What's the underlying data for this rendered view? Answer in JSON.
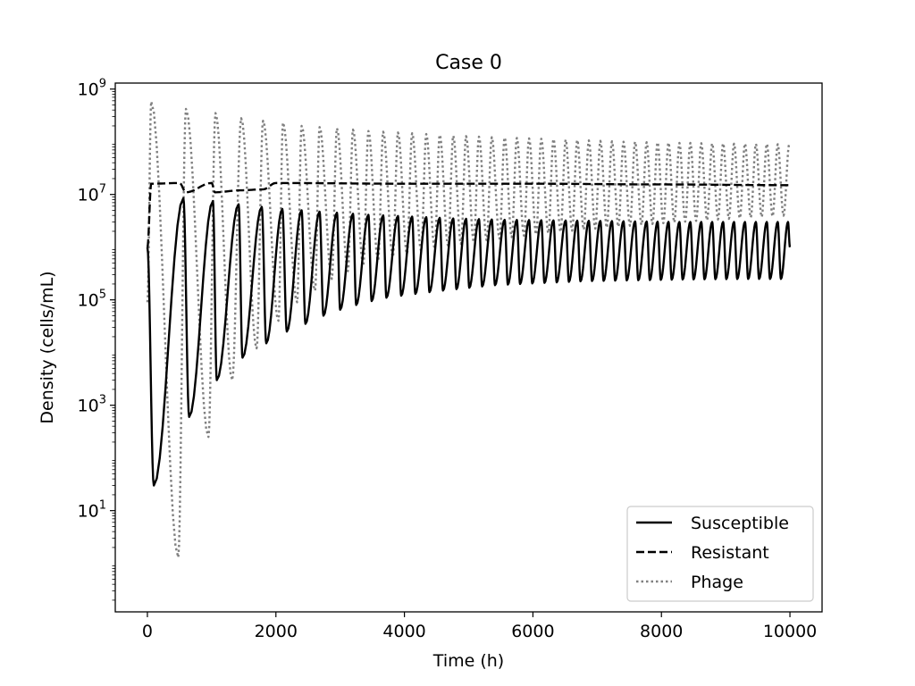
{
  "chart_data": {
    "type": "line",
    "title": "Case 0",
    "xlabel": "Time (h)",
    "ylabel": "Density (cells/mL)",
    "xlim": [
      -500,
      10500
    ],
    "ylim": [
      0.12,
      1300000000.0
    ],
    "yscale": "log",
    "grid": false,
    "legend_position": "lower right",
    "x_ticks": [
      {
        "value": 0,
        "label": "0"
      },
      {
        "value": 2000,
        "label": "2000"
      },
      {
        "value": 4000,
        "label": "4000"
      },
      {
        "value": 6000,
        "label": "6000"
      },
      {
        "value": 8000,
        "label": "8000"
      },
      {
        "value": 10000,
        "label": "10000"
      }
    ],
    "y_ticks": [
      {
        "value": 10,
        "base": "10",
        "exp": "1"
      },
      {
        "value": 1000,
        "base": "10",
        "exp": "3"
      },
      {
        "value": 100000,
        "base": "10",
        "exp": "5"
      },
      {
        "value": 10000000,
        "base": "10",
        "exp": "7"
      },
      {
        "value": 1000000000,
        "base": "10",
        "exp": "9"
      }
    ],
    "series": [
      {
        "name": "Susceptible",
        "color": "#000000",
        "style": "solid",
        "peaks": [
          [
            0,
            1000000
          ],
          [
            560,
            8500000
          ],
          [
            1020,
            7500000
          ],
          [
            1420,
            6500000
          ],
          [
            1780,
            5800000
          ],
          [
            2100,
            5300000
          ],
          [
            2400,
            5000000
          ],
          [
            2680,
            4700000
          ],
          [
            2950,
            4500000
          ],
          [
            3200,
            4300000
          ],
          [
            3440,
            4100000
          ],
          [
            3670,
            4000000
          ],
          [
            3900,
            3900000
          ],
          [
            4120,
            3800000
          ],
          [
            4340,
            3700000
          ],
          [
            4550,
            3600000
          ],
          [
            4760,
            3500000
          ],
          [
            4960,
            3450000
          ],
          [
            5160,
            3400000
          ],
          [
            5360,
            3350000
          ],
          [
            5560,
            3300000
          ],
          [
            5750,
            3280000
          ],
          [
            5940,
            3260000
          ],
          [
            6130,
            3240000
          ],
          [
            6320,
            3220000
          ],
          [
            6510,
            3200000
          ],
          [
            6690,
            3180000
          ],
          [
            6870,
            3160000
          ],
          [
            7050,
            3140000
          ],
          [
            7230,
            3120000
          ],
          [
            7410,
            3100000
          ],
          [
            7590,
            3080000
          ],
          [
            7770,
            3060000
          ],
          [
            7940,
            3040000
          ],
          [
            8110,
            3020000
          ],
          [
            8280,
            3000000
          ],
          [
            8450,
            3000000
          ],
          [
            8620,
            3000000
          ],
          [
            8790,
            3000000
          ],
          [
            8960,
            3000000
          ],
          [
            9130,
            3000000
          ],
          [
            9300,
            3000000
          ],
          [
            9470,
            3000000
          ],
          [
            9640,
            3000000
          ],
          [
            9810,
            3000000
          ],
          [
            9970,
            3000000
          ],
          [
            10000,
            1000000
          ]
        ],
        "troughs": [
          [
            100,
            30
          ],
          [
            650,
            600
          ],
          [
            1080,
            3000
          ],
          [
            1480,
            8000
          ],
          [
            1850,
            15000
          ],
          [
            2170,
            25000
          ],
          [
            2460,
            35000
          ],
          [
            2740,
            50000
          ],
          [
            3000,
            65000
          ],
          [
            3250,
            80000
          ],
          [
            3490,
            95000
          ],
          [
            3720,
            110000
          ],
          [
            3950,
            120000
          ],
          [
            4170,
            130000
          ],
          [
            4390,
            140000
          ],
          [
            4600,
            150000
          ],
          [
            4810,
            160000
          ],
          [
            5010,
            170000
          ],
          [
            5210,
            180000
          ],
          [
            5410,
            190000
          ],
          [
            5610,
            195000
          ],
          [
            5800,
            200000
          ],
          [
            5990,
            205000
          ],
          [
            6180,
            210000
          ],
          [
            6370,
            215000
          ],
          [
            6560,
            220000
          ],
          [
            6740,
            225000
          ],
          [
            6920,
            228000
          ],
          [
            7100,
            230000
          ],
          [
            7280,
            232000
          ],
          [
            7460,
            234000
          ],
          [
            7640,
            236000
          ],
          [
            7820,
            238000
          ],
          [
            7990,
            240000
          ],
          [
            8160,
            242000
          ],
          [
            8330,
            244000
          ],
          [
            8500,
            245000
          ],
          [
            8670,
            246000
          ],
          [
            8840,
            247000
          ],
          [
            9010,
            248000
          ],
          [
            9180,
            249000
          ],
          [
            9350,
            250000
          ],
          [
            9520,
            250000
          ],
          [
            9690,
            250000
          ],
          [
            9860,
            250000
          ]
        ]
      },
      {
        "name": "Resistant",
        "color": "#000000",
        "style": "dashed",
        "peaks": [
          [
            0,
            1000000
          ],
          [
            60,
            16000000
          ],
          [
            500,
            16500000
          ],
          [
            1000,
            16500000
          ],
          [
            2000,
            16500000
          ],
          [
            4000,
            16000000
          ],
          [
            6000,
            16000000
          ],
          [
            8000,
            15500000
          ],
          [
            10000,
            15000000
          ]
        ],
        "troughs": [
          [
            600,
            11000000
          ],
          [
            1050,
            11000000
          ],
          [
            1450,
            12000000
          ],
          [
            1800,
            12500000
          ]
        ]
      },
      {
        "name": "Phage",
        "color": "#808080",
        "style": "dotted",
        "peaks": [
          [
            60,
            580000000
          ],
          [
            600,
            420000000
          ],
          [
            1060,
            350000000
          ],
          [
            1460,
            280000000
          ],
          [
            1800,
            250000000
          ],
          [
            2110,
            230000000
          ],
          [
            2400,
            200000000
          ],
          [
            2680,
            190000000
          ],
          [
            2950,
            180000000
          ],
          [
            3200,
            170000000
          ],
          [
            3440,
            160000000
          ],
          [
            3670,
            155000000
          ],
          [
            3900,
            150000000
          ],
          [
            4120,
            145000000
          ],
          [
            4340,
            140000000
          ],
          [
            4550,
            135000000
          ],
          [
            4760,
            130000000
          ],
          [
            4960,
            128000000
          ],
          [
            5160,
            125000000
          ],
          [
            5360,
            122000000
          ],
          [
            5560,
            120000000
          ],
          [
            5750,
            118000000
          ],
          [
            5940,
            116000000
          ],
          [
            6130,
            114000000
          ],
          [
            6320,
            112000000
          ],
          [
            6510,
            110000000
          ],
          [
            6690,
            108000000
          ],
          [
            6870,
            106000000
          ],
          [
            7050,
            104000000
          ],
          [
            7230,
            102000000
          ],
          [
            7410,
            100000000
          ],
          [
            7590,
            100000000
          ],
          [
            7770,
            98000000
          ],
          [
            7940,
            97000000
          ],
          [
            8110,
            96000000
          ],
          [
            8280,
            95000000
          ],
          [
            8450,
            95000000
          ],
          [
            8620,
            94000000
          ],
          [
            8790,
            93000000
          ],
          [
            8960,
            93000000
          ],
          [
            9130,
            92000000
          ],
          [
            9300,
            92000000
          ],
          [
            9470,
            91000000
          ],
          [
            9640,
            91000000
          ],
          [
            9810,
            90000000
          ],
          [
            9990,
            90000000
          ]
        ],
        "troughs": [
          [
            0,
            90000
          ],
          [
            480,
            1.3
          ],
          [
            950,
            250
          ],
          [
            1320,
            3000
          ],
          [
            1700,
            12000
          ],
          [
            2040,
            40000
          ],
          [
            2330,
            90000
          ],
          [
            2610,
            150000
          ],
          [
            2870,
            250000
          ],
          [
            3120,
            350000
          ],
          [
            3360,
            450000
          ],
          [
            3590,
            550000
          ],
          [
            3820,
            650000
          ],
          [
            4040,
            750000
          ],
          [
            4260,
            850000
          ],
          [
            4470,
            950000
          ],
          [
            4680,
            1050000
          ],
          [
            4880,
            1150000
          ],
          [
            5080,
            1250000
          ],
          [
            5280,
            1350000
          ],
          [
            5480,
            1450000
          ],
          [
            5670,
            1550000
          ],
          [
            5860,
            1650000
          ],
          [
            6050,
            1750000
          ],
          [
            6240,
            1850000
          ],
          [
            6430,
            1950000
          ],
          [
            6610,
            2050000
          ],
          [
            6790,
            2150000
          ],
          [
            6970,
            2250000
          ],
          [
            7150,
            2350000
          ],
          [
            7330,
            2450000
          ],
          [
            7510,
            2550000
          ],
          [
            7690,
            2650000
          ],
          [
            7860,
            2750000
          ],
          [
            8030,
            2850000
          ],
          [
            8200,
            2950000
          ],
          [
            8370,
            3050000
          ],
          [
            8540,
            3150000
          ],
          [
            8710,
            3250000
          ],
          [
            8880,
            3350000
          ],
          [
            9050,
            3450000
          ],
          [
            9220,
            3550000
          ],
          [
            9390,
            3650000
          ],
          [
            9560,
            3750000
          ],
          [
            9730,
            3850000
          ],
          [
            9900,
            3950000
          ]
        ]
      }
    ]
  }
}
